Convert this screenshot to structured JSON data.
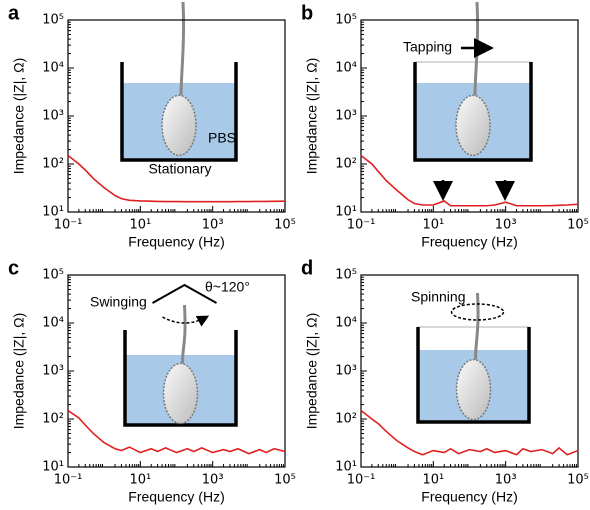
{
  "chart_data": [
    {
      "type": "line",
      "panel": "a",
      "xlabel": "Frequency (Hz)",
      "ylabel": "Impedance (|Z|, Ω)",
      "xscale": "log",
      "yscale": "log",
      "color": "#e02020",
      "annotations": [
        "PBS",
        "Stationary"
      ],
      "xlim": [
        0.1,
        100000
      ],
      "ylim": [
        10,
        100000
      ],
      "xticks": [
        {
          "value": 0.1,
          "label": "10⁻¹"
        },
        {
          "value": 10,
          "label": "10¹"
        },
        {
          "value": 1000,
          "label": "10³"
        },
        {
          "value": 100000,
          "label": "10⁵"
        }
      ],
      "yticks": [
        {
          "value": 10,
          "label": "10¹"
        },
        {
          "value": 100,
          "label": "10²"
        },
        {
          "value": 1000,
          "label": "10³"
        },
        {
          "value": 10000,
          "label": "10⁴"
        },
        {
          "value": 100000,
          "label": "10⁵"
        }
      ],
      "x": [
        0.1,
        0.2,
        0.3,
        0.5,
        1,
        2,
        3,
        5,
        10,
        20,
        30,
        50,
        100,
        200,
        300,
        500,
        1000,
        2000,
        3000,
        5000,
        10000,
        20000,
        30000,
        50000,
        100000
      ],
      "values": [
        150,
        100,
        75,
        50,
        32,
        22,
        19,
        17.5,
        17,
        16.8,
        16.6,
        16.5,
        16.5,
        16.4,
        16.4,
        16.4,
        16.4,
        16.4,
        16.4,
        16.5,
        16.5,
        16.6,
        16.6,
        16.7,
        16.8
      ]
    },
    {
      "type": "line",
      "panel": "b",
      "xlabel": "Frequency (Hz)",
      "ylabel": "Impedance (|Z|, Ω)",
      "xscale": "log",
      "yscale": "log",
      "color": "#e02020",
      "annotations": [
        "Tapping"
      ],
      "xlim": [
        0.1,
        100000
      ],
      "ylim": [
        10,
        100000
      ],
      "xticks": [
        {
          "value": 0.1,
          "label": "10⁻¹"
        },
        {
          "value": 10,
          "label": "10¹"
        },
        {
          "value": 1000,
          "label": "10³"
        },
        {
          "value": 100000,
          "label": "10⁵"
        }
      ],
      "yticks": [
        {
          "value": 10,
          "label": "10¹"
        },
        {
          "value": 100,
          "label": "10²"
        },
        {
          "value": 1000,
          "label": "10³"
        },
        {
          "value": 10000,
          "label": "10⁴"
        },
        {
          "value": 100000,
          "label": "10⁵"
        }
      ],
      "x": [
        0.1,
        0.2,
        0.3,
        0.5,
        1,
        2,
        3,
        5,
        10,
        20,
        30,
        50,
        100,
        200,
        300,
        500,
        1000,
        2000,
        3000,
        5000,
        10000,
        20000,
        30000,
        50000,
        100000
      ],
      "values": [
        150,
        100,
        70,
        45,
        28,
        18,
        15,
        14,
        14,
        17,
        13.5,
        13.5,
        13.5,
        13.5,
        13.5,
        14,
        16,
        13.5,
        13.5,
        13.5,
        13.5,
        13.6,
        13.8,
        14,
        14.5
      ]
    },
    {
      "type": "line",
      "panel": "c",
      "xlabel": "Frequency (Hz)",
      "ylabel": "Impedance (|Z|, Ω)",
      "xscale": "log",
      "yscale": "log",
      "color": "#e02020",
      "annotations": [
        "Swinging",
        "θ~120°"
      ],
      "xlim": [
        0.1,
        100000
      ],
      "ylim": [
        10,
        100000
      ],
      "xticks": [
        {
          "value": 0.1,
          "label": "10⁻¹"
        },
        {
          "value": 10,
          "label": "10¹"
        },
        {
          "value": 1000,
          "label": "10³"
        },
        {
          "value": 100000,
          "label": "10⁵"
        }
      ],
      "yticks": [
        {
          "value": 10,
          "label": "10¹"
        },
        {
          "value": 100,
          "label": "10²"
        },
        {
          "value": 1000,
          "label": "10³"
        },
        {
          "value": 10000,
          "label": "10⁴"
        },
        {
          "value": 100000,
          "label": "10⁵"
        }
      ],
      "x": [
        0.1,
        0.2,
        0.3,
        0.5,
        1,
        2,
        3,
        5,
        10,
        20,
        30,
        50,
        100,
        200,
        300,
        500,
        1000,
        2000,
        3000,
        5000,
        10000,
        20000,
        30000,
        50000,
        100000
      ],
      "values": [
        150,
        105,
        75,
        50,
        32,
        24,
        22,
        26,
        20,
        24,
        21,
        25,
        20,
        24,
        21,
        25,
        20,
        23,
        21,
        24,
        19,
        23,
        20,
        24,
        21
      ]
    },
    {
      "type": "line",
      "panel": "d",
      "xlabel": "Frequency (Hz)",
      "ylabel": "Impedance (|Z|, Ω)",
      "xscale": "log",
      "yscale": "log",
      "color": "#e02020",
      "annotations": [
        "Spinning"
      ],
      "xlim": [
        0.1,
        100000
      ],
      "ylim": [
        10,
        100000
      ],
      "xticks": [
        {
          "value": 0.1,
          "label": "10⁻¹"
        },
        {
          "value": 10,
          "label": "10¹"
        },
        {
          "value": 1000,
          "label": "10³"
        },
        {
          "value": 100000,
          "label": "10⁵"
        }
      ],
      "yticks": [
        {
          "value": 10,
          "label": "10¹"
        },
        {
          "value": 100,
          "label": "10²"
        },
        {
          "value": 1000,
          "label": "10³"
        },
        {
          "value": 10000,
          "label": "10⁴"
        },
        {
          "value": 100000,
          "label": "10⁵"
        }
      ],
      "x": [
        0.1,
        0.2,
        0.3,
        0.5,
        1,
        2,
        3,
        5,
        10,
        20,
        30,
        50,
        100,
        200,
        300,
        500,
        1000,
        2000,
        3000,
        5000,
        10000,
        20000,
        30000,
        50000,
        100000
      ],
      "values": [
        150,
        100,
        80,
        55,
        35,
        25,
        21,
        18,
        22,
        20,
        24,
        19,
        23,
        21,
        24,
        20,
        22,
        18,
        24,
        21,
        23,
        19,
        25,
        18,
        22
      ]
    }
  ]
}
